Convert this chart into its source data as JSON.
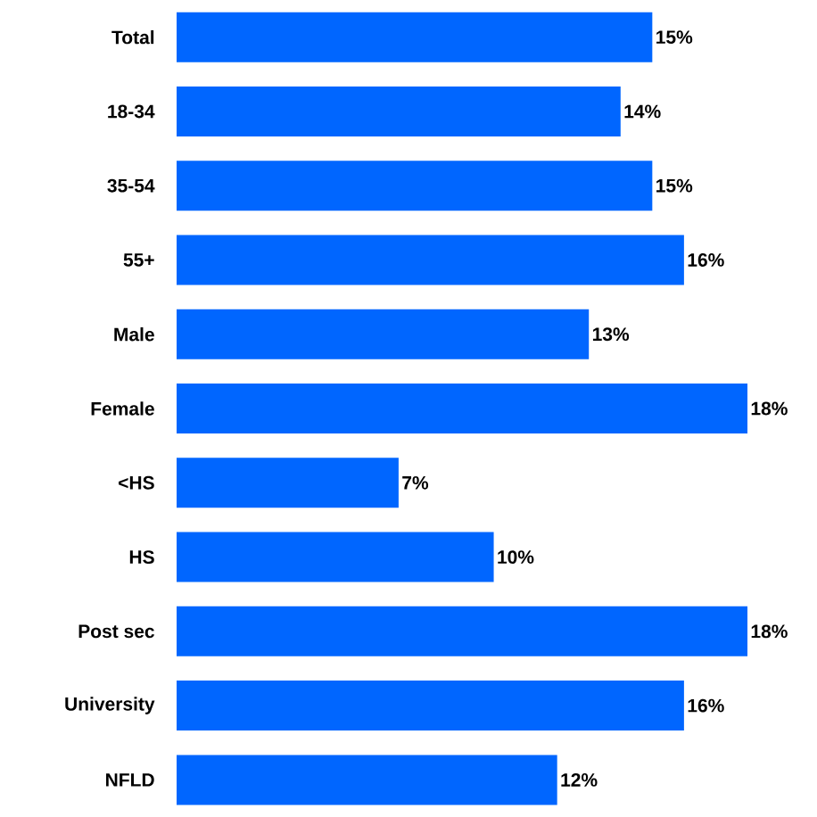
{
  "chart_data": {
    "type": "bar",
    "orientation": "horizontal",
    "color": "#0066ff",
    "categories": [
      "Total",
      "18-34",
      "35-54",
      "55+",
      "Male",
      "Female",
      "<HS",
      "HS",
      "Post sec",
      "University",
      "NFLD"
    ],
    "values": [
      15,
      14,
      15,
      16,
      13,
      18,
      7,
      10,
      18,
      16,
      12
    ],
    "value_labels": [
      "15%",
      "14%",
      "15%",
      "16%",
      "13%",
      "18%",
      "7%",
      "10%",
      "18%",
      "16%",
      "12%"
    ]
  }
}
